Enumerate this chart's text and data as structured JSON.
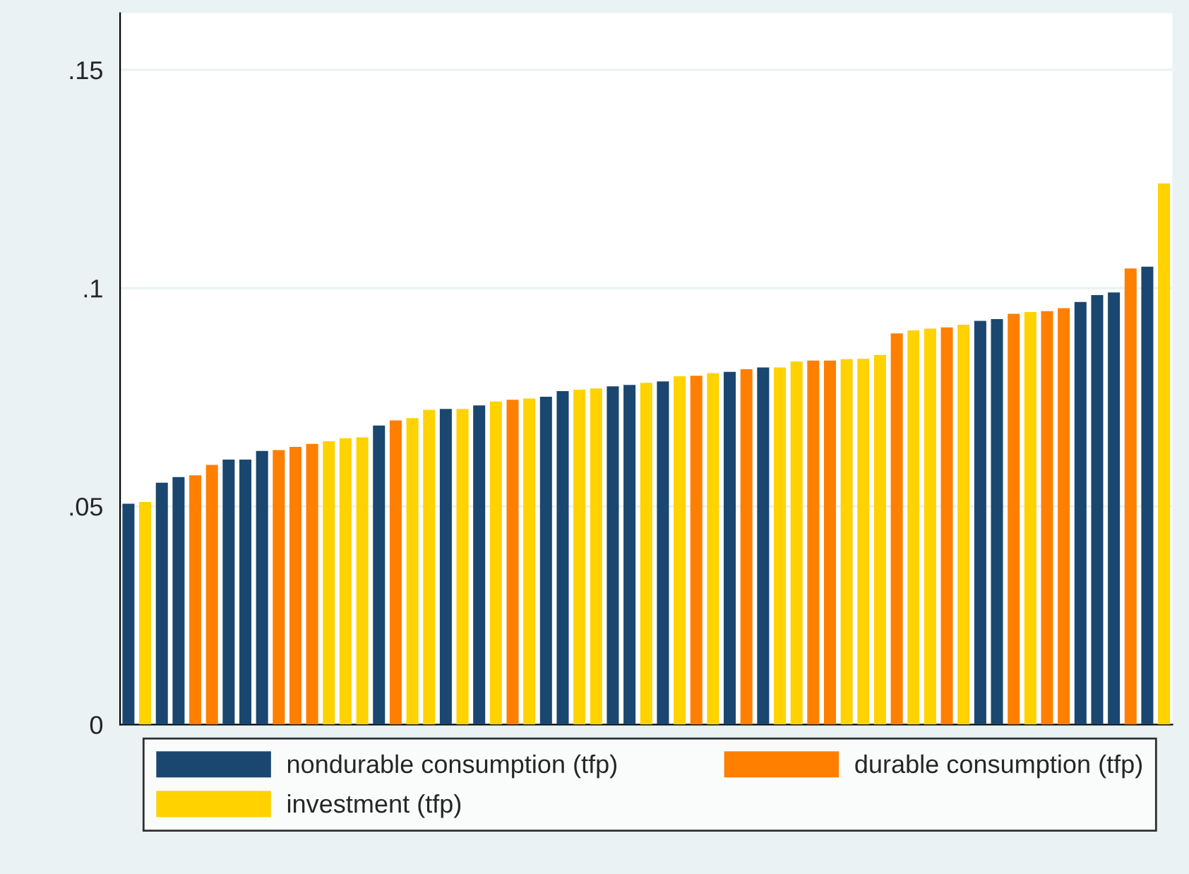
{
  "chart_data": {
    "type": "bar",
    "categories": [
      null,
      null,
      null,
      null,
      null,
      null,
      null,
      null,
      null,
      null,
      null,
      null,
      null,
      null,
      null,
      null,
      null,
      null,
      null,
      null,
      null,
      null,
      null,
      null,
      null,
      null,
      null,
      null,
      null,
      null,
      null,
      null,
      null,
      null,
      null,
      null,
      null,
      null,
      null,
      null,
      null,
      null,
      null,
      null,
      null,
      null,
      null,
      null,
      null,
      null,
      null,
      null,
      null,
      null,
      null,
      null,
      null,
      null,
      null,
      null,
      null,
      null,
      null
    ],
    "series": [
      {
        "name": "nondurable consumption (tfp)",
        "color": "#1a476f",
        "values": [
          0.0506,
          null,
          0.0554,
          0.0567,
          null,
          null,
          0.0607,
          0.0607,
          0.0627,
          null,
          null,
          null,
          null,
          null,
          null,
          0.0685,
          null,
          null,
          null,
          0.0723,
          null,
          0.0731,
          null,
          null,
          null,
          0.0751,
          0.0764,
          null,
          null,
          0.0775,
          0.0778,
          null,
          0.0786,
          null,
          null,
          null,
          0.0808,
          null,
          0.0818,
          null,
          null,
          null,
          null,
          null,
          null,
          null,
          null,
          null,
          null,
          null,
          null,
          0.0925,
          0.0929,
          null,
          null,
          null,
          null,
          0.0968,
          0.0984,
          0.099,
          null,
          0.1049,
          null
        ]
      },
      {
        "name": "durable consumption (tfp)",
        "color": "#ff7f00",
        "values": [
          null,
          null,
          null,
          null,
          0.0571,
          0.0595,
          null,
          null,
          null,
          0.0629,
          0.0636,
          0.0643,
          null,
          null,
          null,
          null,
          0.0697,
          null,
          null,
          null,
          null,
          null,
          null,
          0.0744,
          null,
          null,
          null,
          null,
          null,
          null,
          null,
          null,
          null,
          null,
          0.0799,
          null,
          null,
          0.0814,
          null,
          null,
          null,
          0.0834,
          0.0834,
          null,
          null,
          null,
          0.0896,
          null,
          null,
          0.091,
          null,
          null,
          null,
          0.0941,
          null,
          0.0947,
          0.0954,
          null,
          null,
          null,
          0.1045,
          null,
          null
        ]
      },
      {
        "name": "investment (tfp)",
        "color": "#ffd200",
        "values": [
          null,
          0.051,
          null,
          null,
          null,
          null,
          null,
          null,
          null,
          null,
          null,
          null,
          0.0649,
          0.0656,
          0.0658,
          null,
          null,
          0.0702,
          0.0721,
          null,
          0.0723,
          null,
          0.074,
          null,
          0.0747,
          null,
          null,
          0.0767,
          0.077,
          null,
          null,
          0.0783,
          null,
          0.0798,
          null,
          0.0805,
          null,
          null,
          null,
          0.0818,
          0.0832,
          null,
          null,
          0.0837,
          0.0838,
          0.0847,
          null,
          0.0903,
          0.0907,
          null,
          0.0916,
          null,
          null,
          null,
          0.0945,
          null,
          null,
          null,
          null,
          null,
          null,
          null,
          0.124
        ]
      }
    ],
    "ylim": [
      0,
      0.163
    ],
    "yticks": [
      {
        "value": 0,
        "label": "0"
      },
      {
        "value": 0.05,
        "label": ".05"
      },
      {
        "value": 0.1,
        "label": ".1"
      },
      {
        "value": 0.15,
        "label": ".15"
      }
    ],
    "grid": "y",
    "legend": "bottom"
  }
}
